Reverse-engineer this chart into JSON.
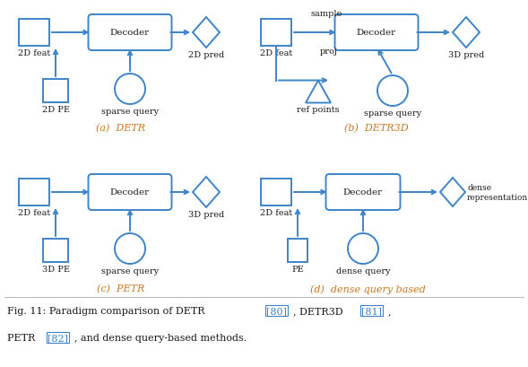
{
  "blue": "#3d85c8",
  "black": "#1a1a1a",
  "bg": "#ffffff",
  "fig_width": 5.89,
  "fig_height": 4.1,
  "subtitle_a": "(a)  DETR",
  "subtitle_b": "(b)  DETR3D",
  "subtitle_c": "(c)  PETR",
  "subtitle_d": "(d)  dense query based",
  "subtitle_color": "#cc7722",
  "lw": 1.4,
  "fs_label": 7.0,
  "fs_decoder": 7.5,
  "fs_subtitle": 8.0,
  "fs_caption": 8.0
}
